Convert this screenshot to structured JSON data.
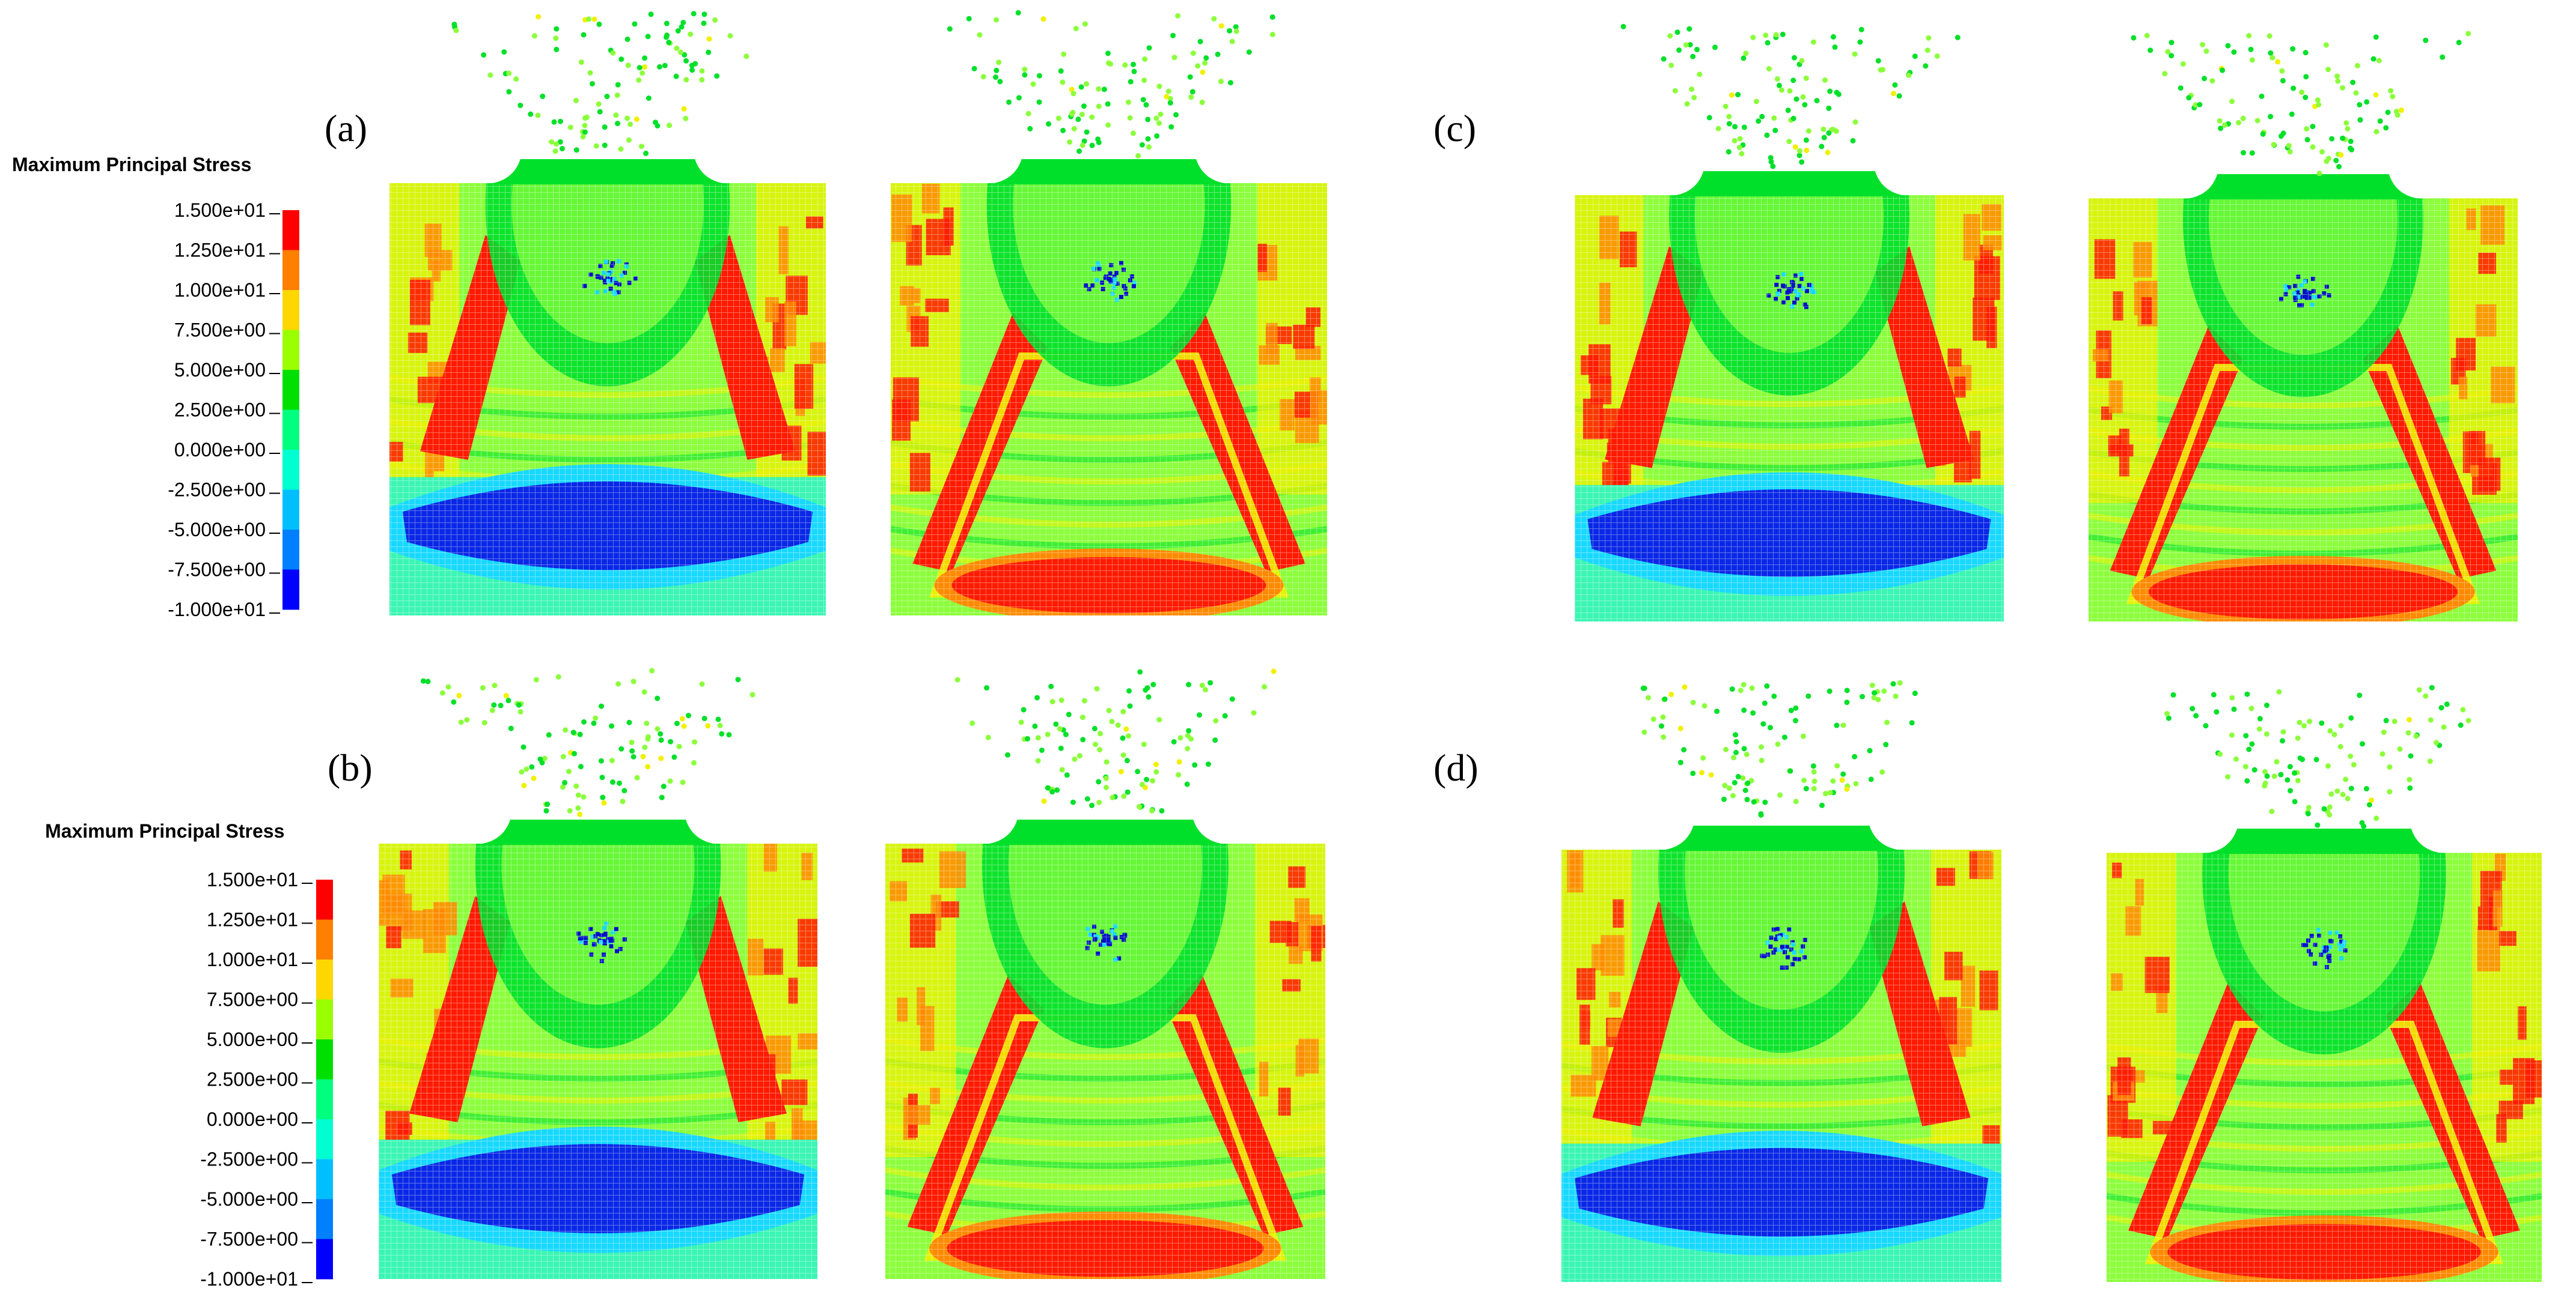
{
  "panel_labels": [
    "(a)",
    "(b)",
    "(c)",
    "(d)"
  ],
  "legend": {
    "title": "Maximum Principal Stress",
    "ticks": [
      "1.500e+01",
      "1.250e+01",
      "1.000e+01",
      "7.500e+00",
      "5.000e+00",
      "2.500e+00",
      "0.000e+00",
      "-2.500e+00",
      "-5.000e+00",
      "-7.500e+00",
      "-1.000e+01"
    ],
    "colors": [
      "#ff0000",
      "#ff7f00",
      "#ffd700",
      "#9aff00",
      "#00e000",
      "#00ff7f",
      "#00ffd0",
      "#00bfff",
      "#0080ff",
      "#0000ff"
    ]
  },
  "colors": {
    "red": "#ff1a00",
    "orange": "#ff8a00",
    "yellow": "#f0f000",
    "light_green": "#8cff3c",
    "green": "#00e02a",
    "aqua": "#3cf5b4",
    "cyan": "#18d8ff",
    "blue": "#0a28e6",
    "deep_blue": "#0010c8"
  },
  "panels": [
    {
      "id": "a",
      "left": {
        "bottom": "blue-arc"
      },
      "right": {
        "bottom": "red-oval"
      }
    },
    {
      "id": "b",
      "left": {
        "bottom": "blue-arc"
      },
      "right": {
        "bottom": "red-oval"
      }
    },
    {
      "id": "c",
      "left": {
        "bottom": "blue-arc"
      },
      "right": {
        "bottom": "red-oval"
      }
    },
    {
      "id": "d",
      "left": {
        "bottom": "blue-arc"
      },
      "right": {
        "bottom": "red-oval"
      }
    }
  ]
}
